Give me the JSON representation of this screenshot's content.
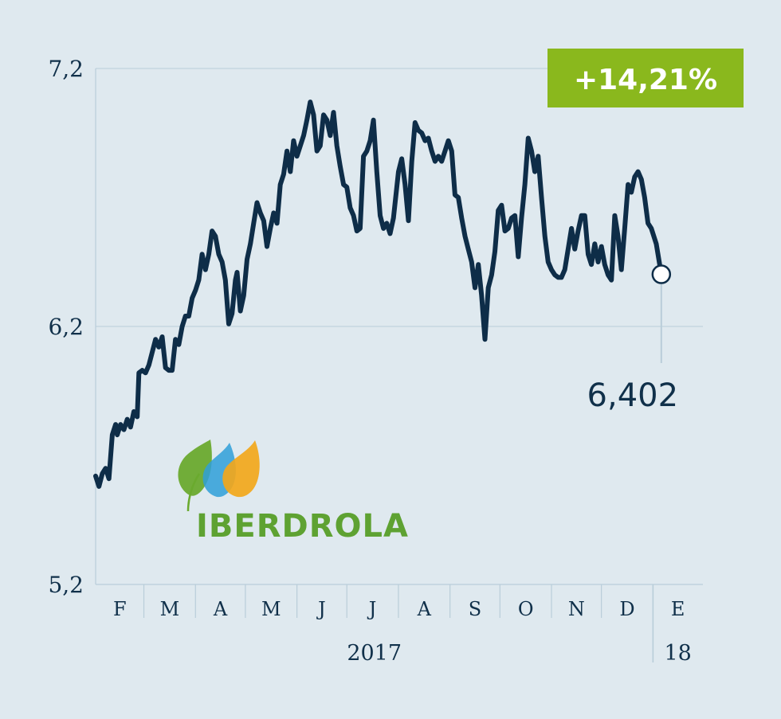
{
  "badge": {
    "text": "+14,21%",
    "color": "#8ab81d"
  },
  "logo": {
    "name": "IBERDROLA",
    "colors": {
      "green": "#5ea232",
      "blue": "#2f9fd8",
      "orange": "#f2a71b"
    }
  },
  "last_value_label": "6,402",
  "colors": {
    "line": "#0e2d48",
    "grid": "#b9cdd9",
    "background": "#dfe9ef"
  },
  "chart_data": {
    "type": "line",
    "title": "",
    "xlabel": "",
    "ylabel": "",
    "ylim": [
      5.2,
      7.2
    ],
    "yticks": [
      5.2,
      6.2,
      7.2
    ],
    "ytick_labels": [
      "5,2",
      "6,2",
      "7,2"
    ],
    "x_range": [
      "2017-01-31",
      "2018-01-31"
    ],
    "month_labels": [
      "F",
      "M",
      "A",
      "M",
      "J",
      "J",
      "A",
      "S",
      "O",
      "N",
      "D",
      "E"
    ],
    "year_labels": [
      "2017",
      "18"
    ],
    "grid": true,
    "series": [
      {
        "values": [
          [
            "2017-01-31",
            5.62
          ],
          [
            "2017-02-02",
            5.58
          ],
          [
            "2017-02-04",
            5.63
          ],
          [
            "2017-02-06",
            5.65
          ],
          [
            "2017-02-08",
            5.61
          ],
          [
            "2017-02-10",
            5.78
          ],
          [
            "2017-02-12",
            5.82
          ],
          [
            "2017-02-13",
            5.78
          ],
          [
            "2017-02-15",
            5.82
          ],
          [
            "2017-02-17",
            5.8
          ],
          [
            "2017-02-19",
            5.84
          ],
          [
            "2017-02-21",
            5.81
          ],
          [
            "2017-02-23",
            5.87
          ],
          [
            "2017-02-25",
            5.85
          ],
          [
            "2017-02-26",
            6.02
          ],
          [
            "2017-02-28",
            6.03
          ],
          [
            "2017-03-02",
            6.02
          ],
          [
            "2017-03-04",
            6.05
          ],
          [
            "2017-03-06",
            6.1
          ],
          [
            "2017-03-08",
            6.15
          ],
          [
            "2017-03-10",
            6.12
          ],
          [
            "2017-03-12",
            6.16
          ],
          [
            "2017-03-14",
            6.04
          ],
          [
            "2017-03-16",
            6.03
          ],
          [
            "2017-03-18",
            6.03
          ],
          [
            "2017-03-20",
            6.15
          ],
          [
            "2017-03-22",
            6.13
          ],
          [
            "2017-03-24",
            6.2
          ],
          [
            "2017-03-26",
            6.24
          ],
          [
            "2017-03-28",
            6.24
          ],
          [
            "2017-03-30",
            6.31
          ],
          [
            "2017-04-01",
            6.34
          ],
          [
            "2017-04-03",
            6.38
          ],
          [
            "2017-04-05",
            6.48
          ],
          [
            "2017-04-07",
            6.42
          ],
          [
            "2017-04-09",
            6.48
          ],
          [
            "2017-04-11",
            6.57
          ],
          [
            "2017-04-13",
            6.55
          ],
          [
            "2017-04-15",
            6.48
          ],
          [
            "2017-04-17",
            6.45
          ],
          [
            "2017-04-19",
            6.38
          ],
          [
            "2017-04-21",
            6.21
          ],
          [
            "2017-04-23",
            6.25
          ],
          [
            "2017-04-25",
            6.38
          ],
          [
            "2017-04-26",
            6.41
          ],
          [
            "2017-04-28",
            6.26
          ],
          [
            "2017-04-30",
            6.32
          ],
          [
            "2017-05-02",
            6.46
          ],
          [
            "2017-05-04",
            6.52
          ],
          [
            "2017-05-06",
            6.6
          ],
          [
            "2017-05-08",
            6.68
          ],
          [
            "2017-05-10",
            6.64
          ],
          [
            "2017-05-12",
            6.61
          ],
          [
            "2017-05-14",
            6.51
          ],
          [
            "2017-05-16",
            6.58
          ],
          [
            "2017-05-18",
            6.64
          ],
          [
            "2017-05-20",
            6.6
          ],
          [
            "2017-05-22",
            6.75
          ],
          [
            "2017-05-24",
            6.79
          ],
          [
            "2017-05-26",
            6.88
          ],
          [
            "2017-05-28",
            6.8
          ],
          [
            "2017-05-30",
            6.92
          ],
          [
            "2017-06-01",
            6.86
          ],
          [
            "2017-06-03",
            6.9
          ],
          [
            "2017-06-05",
            6.94
          ],
          [
            "2017-06-07",
            7.0
          ],
          [
            "2017-06-09",
            7.07
          ],
          [
            "2017-06-11",
            7.02
          ],
          [
            "2017-06-13",
            6.88
          ],
          [
            "2017-06-15",
            6.9
          ],
          [
            "2017-06-17",
            7.02
          ],
          [
            "2017-06-19",
            7.0
          ],
          [
            "2017-06-21",
            6.94
          ],
          [
            "2017-06-23",
            7.03
          ],
          [
            "2017-06-25",
            6.9
          ],
          [
            "2017-06-27",
            6.82
          ],
          [
            "2017-06-29",
            6.75
          ],
          [
            "2017-07-01",
            6.74
          ],
          [
            "2017-07-03",
            6.66
          ],
          [
            "2017-07-05",
            6.63
          ],
          [
            "2017-07-07",
            6.57
          ],
          [
            "2017-07-09",
            6.58
          ],
          [
            "2017-07-11",
            6.86
          ],
          [
            "2017-07-13",
            6.88
          ],
          [
            "2017-07-15",
            6.92
          ],
          [
            "2017-07-17",
            7.0
          ],
          [
            "2017-07-19",
            6.8
          ],
          [
            "2017-07-21",
            6.63
          ],
          [
            "2017-07-23",
            6.58
          ],
          [
            "2017-07-25",
            6.6
          ],
          [
            "2017-07-27",
            6.56
          ],
          [
            "2017-07-29",
            6.62
          ],
          [
            "2017-08-01",
            6.8
          ],
          [
            "2017-08-03",
            6.85
          ],
          [
            "2017-08-05",
            6.75
          ],
          [
            "2017-08-07",
            6.61
          ],
          [
            "2017-08-09",
            6.84
          ],
          [
            "2017-08-11",
            6.99
          ],
          [
            "2017-08-13",
            6.96
          ],
          [
            "2017-08-15",
            6.95
          ],
          [
            "2017-08-17",
            6.92
          ],
          [
            "2017-08-19",
            6.93
          ],
          [
            "2017-08-21",
            6.88
          ],
          [
            "2017-08-23",
            6.84
          ],
          [
            "2017-08-25",
            6.86
          ],
          [
            "2017-08-27",
            6.84
          ],
          [
            "2017-08-29",
            6.88
          ],
          [
            "2017-08-31",
            6.92
          ],
          [
            "2017-09-02",
            6.88
          ],
          [
            "2017-09-04",
            6.71
          ],
          [
            "2017-09-06",
            6.7
          ],
          [
            "2017-09-08",
            6.62
          ],
          [
            "2017-09-10",
            6.55
          ],
          [
            "2017-09-12",
            6.5
          ],
          [
            "2017-09-14",
            6.45
          ],
          [
            "2017-09-16",
            6.35
          ],
          [
            "2017-09-18",
            6.44
          ],
          [
            "2017-09-20",
            6.32
          ],
          [
            "2017-09-22",
            6.15
          ],
          [
            "2017-09-24",
            6.35
          ],
          [
            "2017-09-26",
            6.4
          ],
          [
            "2017-09-28",
            6.49
          ],
          [
            "2017-09-30",
            6.65
          ],
          [
            "2017-10-02",
            6.67
          ],
          [
            "2017-10-04",
            6.57
          ],
          [
            "2017-10-06",
            6.58
          ],
          [
            "2017-10-08",
            6.62
          ],
          [
            "2017-10-10",
            6.63
          ],
          [
            "2017-10-12",
            6.47
          ],
          [
            "2017-10-14",
            6.62
          ],
          [
            "2017-10-16",
            6.75
          ],
          [
            "2017-10-18",
            6.93
          ],
          [
            "2017-10-20",
            6.88
          ],
          [
            "2017-10-22",
            6.8
          ],
          [
            "2017-10-24",
            6.86
          ],
          [
            "2017-10-26",
            6.7
          ],
          [
            "2017-10-28",
            6.55
          ],
          [
            "2017-10-30",
            6.45
          ],
          [
            "2017-11-01",
            6.42
          ],
          [
            "2017-11-03",
            6.4
          ],
          [
            "2017-11-05",
            6.39
          ],
          [
            "2017-11-07",
            6.39
          ],
          [
            "2017-11-09",
            6.42
          ],
          [
            "2017-11-11",
            6.5
          ],
          [
            "2017-11-13",
            6.58
          ],
          [
            "2017-11-15",
            6.5
          ],
          [
            "2017-11-17",
            6.57
          ],
          [
            "2017-11-19",
            6.63
          ],
          [
            "2017-11-21",
            6.63
          ],
          [
            "2017-11-23",
            6.48
          ],
          [
            "2017-11-25",
            6.44
          ],
          [
            "2017-11-27",
            6.52
          ],
          [
            "2017-11-29",
            6.45
          ],
          [
            "2017-12-01",
            6.51
          ],
          [
            "2017-12-03",
            6.44
          ],
          [
            "2017-12-05",
            6.4
          ],
          [
            "2017-12-07",
            6.38
          ],
          [
            "2017-12-09",
            6.63
          ],
          [
            "2017-12-11",
            6.55
          ],
          [
            "2017-12-13",
            6.42
          ],
          [
            "2017-12-15",
            6.58
          ],
          [
            "2017-12-17",
            6.75
          ],
          [
            "2017-12-19",
            6.72
          ],
          [
            "2017-12-21",
            6.78
          ],
          [
            "2017-12-23",
            6.8
          ],
          [
            "2017-12-25",
            6.77
          ],
          [
            "2017-12-27",
            6.7
          ],
          [
            "2017-12-29",
            6.6
          ],
          [
            "2017-12-31",
            6.58
          ],
          [
            "2018-01-03",
            6.52
          ],
          [
            "2018-01-06",
            6.402
          ]
        ]
      }
    ]
  }
}
